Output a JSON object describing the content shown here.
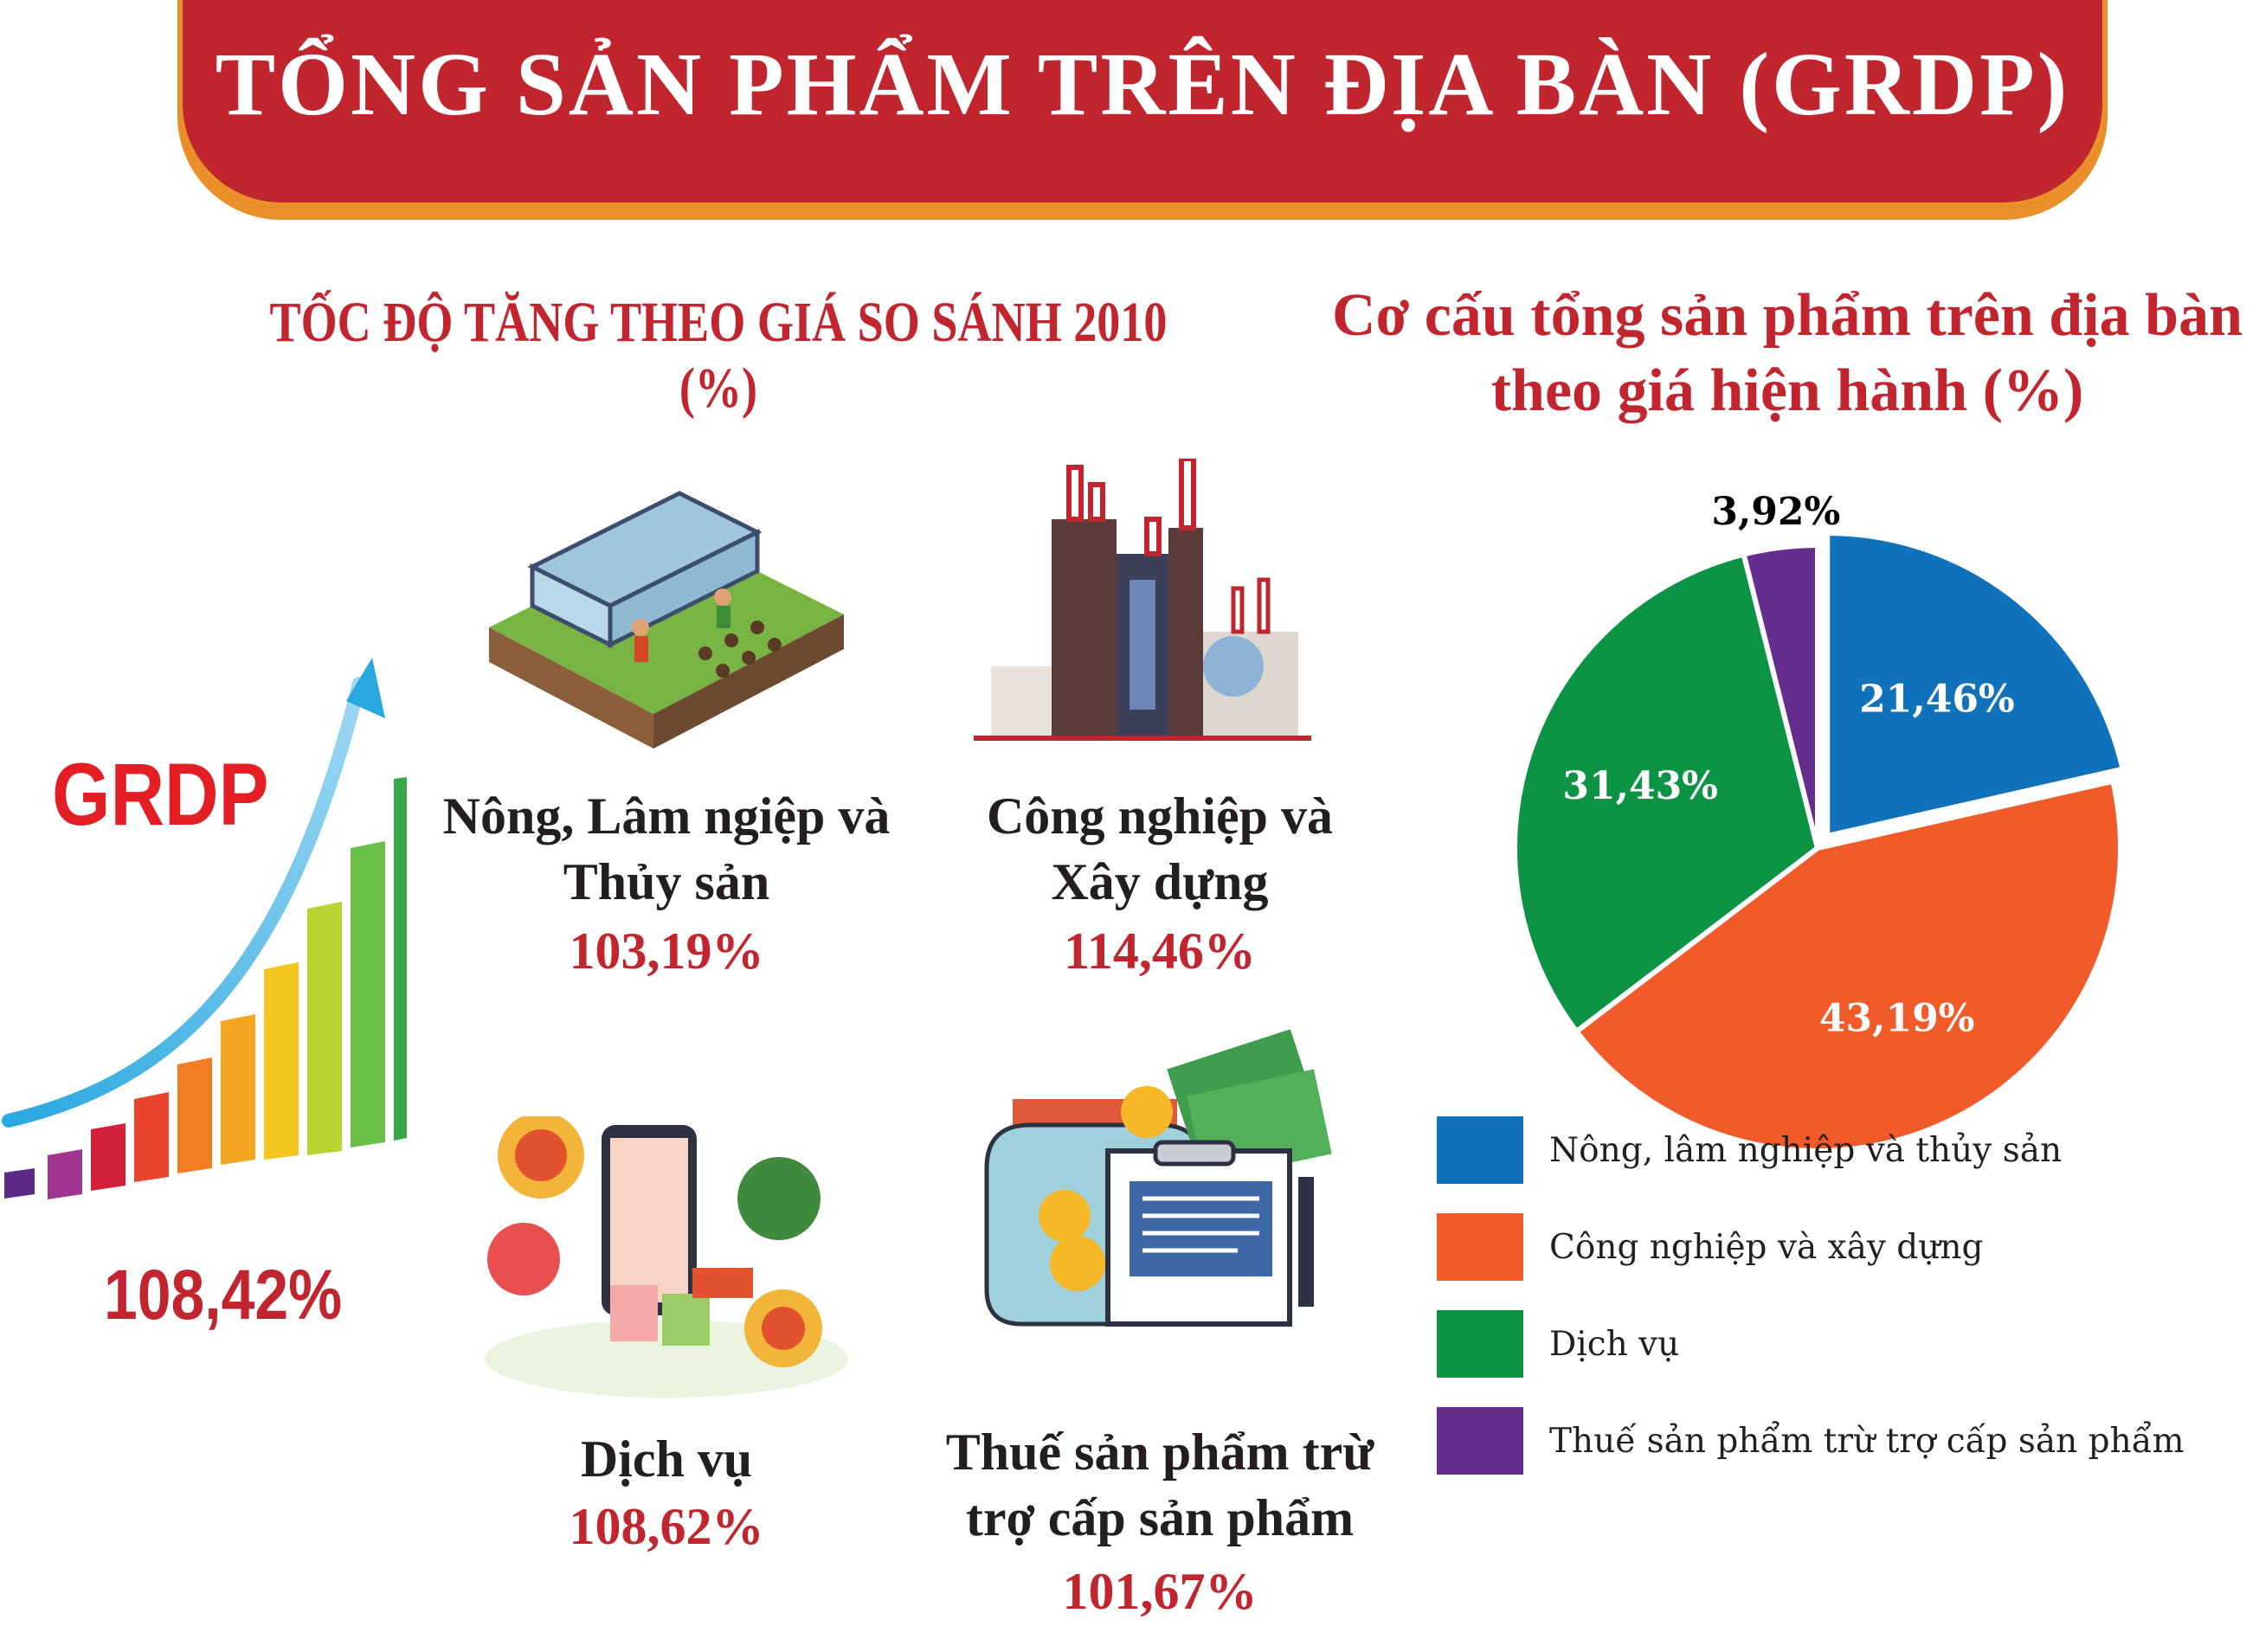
{
  "title": "TỔNG SẢN PHẨM TRÊN ĐỊA BÀN (GRDP)",
  "growth": {
    "heading": "TỐC ĐỘ TĂNG THEO GIÁ SO SÁNH 2010 (%)",
    "grdp_label": "GRDP",
    "grdp_value": "108,42%",
    "sectors": [
      {
        "name_line1": "Nông, Lâm ngiệp và",
        "name_line2": "Thủy sản",
        "value": "103,19%",
        "icon": "greenhouse-farm-icon"
      },
      {
        "name_line1": "Công nghiệp và",
        "name_line2": "Xây dựng",
        "value": "114,46%",
        "icon": "factory-icon"
      },
      {
        "name_line1": "Dịch vụ",
        "name_line2": "",
        "value": "108,62%",
        "icon": "shopping-services-icon"
      },
      {
        "name_line1": "Thuế sản phẩm trừ",
        "name_line2": "trợ cấp sản phẩm",
        "value": "101,67%",
        "icon": "money-jar-tax-icon"
      }
    ]
  },
  "chart_data": {
    "type": "pie",
    "title_line1": "Cơ cấu tổng sản phẩm trên địa bàn",
    "title_line2": "theo giá hiện hành (%)",
    "slices": [
      {
        "label": "Nông, lâm nghiệp và thủy sản",
        "value": 21.46,
        "text": "21,46%",
        "color": "#0f72ba"
      },
      {
        "label": "Công nghiệp và xây dựng",
        "value": 43.19,
        "text": "43,19%",
        "color": "#f15a29"
      },
      {
        "label": "Dịch vụ",
        "value": 31.43,
        "text": "31,43%",
        "color": "#0d9344"
      },
      {
        "label": "Thuế sản phẩm trừ trợ cấp sản phẩm",
        "value": 3.92,
        "text": "3,92%",
        "color": "#662d91"
      }
    ],
    "legend_position": "bottom-right"
  },
  "colors": {
    "banner": "#c1262f",
    "banner_border": "#e9902b",
    "accent_red": "#c1262f"
  }
}
